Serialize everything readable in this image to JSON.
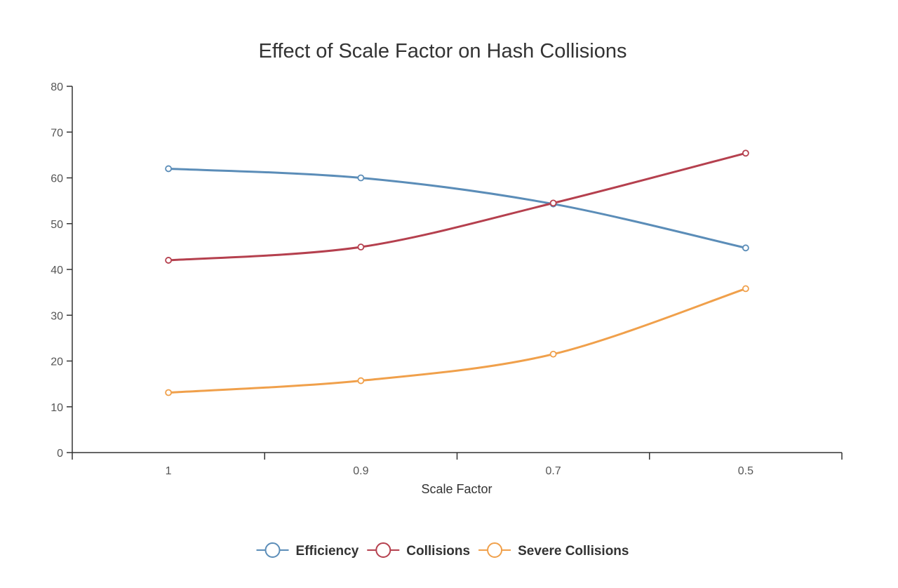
{
  "chart_data": {
    "type": "line",
    "title": "Effect of Scale Factor on Hash Collisions",
    "xlabel": "Scale Factor",
    "ylabel": "",
    "categories": [
      "1",
      "0.9",
      "0.7",
      "0.5"
    ],
    "ylim": [
      0,
      80
    ],
    "yticks": [
      "0",
      "10",
      "20",
      "30",
      "40",
      "50",
      "60",
      "70",
      "80"
    ],
    "grid": false,
    "legend_position": "bottom-center",
    "series": [
      {
        "name": "Efficiency",
        "color": "#5b8db8",
        "values": [
          62,
          60,
          54.3,
          44.7
        ]
      },
      {
        "name": "Collisions",
        "color": "#b5404e",
        "values": [
          42,
          44.9,
          54.5,
          65.4
        ]
      },
      {
        "name": "Severe Collisions",
        "color": "#f0a04b",
        "values": [
          13.1,
          15.7,
          21.5,
          35.8
        ]
      }
    ]
  }
}
